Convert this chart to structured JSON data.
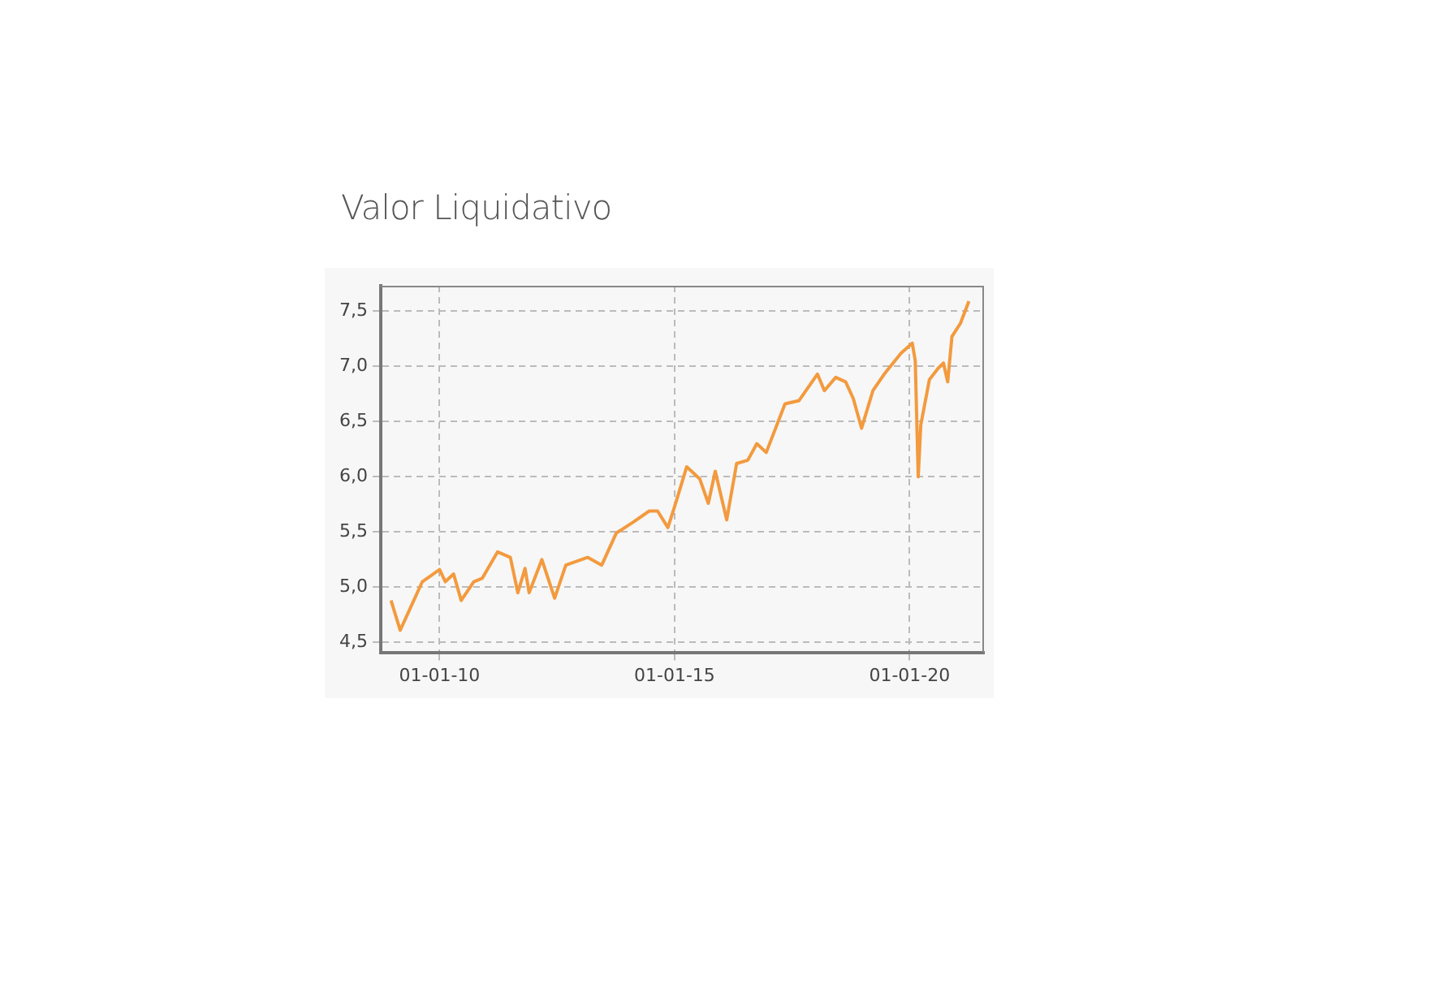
{
  "chart_data": {
    "type": "line",
    "title": "Valor Liquidativo",
    "x": [
      "2008-12-20",
      "2009-03-01",
      "2009-08-20",
      "2010-01-01",
      "2010-02-15",
      "2010-04-20",
      "2010-06-18",
      "2010-09-24",
      "2010-11-28",
      "2011-03-28",
      "2011-07-05",
      "2011-09-01",
      "2011-10-27",
      "2011-11-28",
      "2012-03-06",
      "2012-06-13",
      "2012-09-08",
      "2013-02-24",
      "2013-06-14",
      "2013-10-05",
      "2014-02-14",
      "2014-06-18",
      "2014-08-22",
      "2014-11-10",
      "2015-01-01",
      "2015-04-05",
      "2015-07-16",
      "2015-09-20",
      "2015-11-13",
      "2016-02-10",
      "2016-04-27",
      "2016-07-23",
      "2016-10-01",
      "2016-12-13",
      "2017-05-08",
      "2017-08-25",
      "2018-01-15",
      "2018-03-10",
      "2018-06-06",
      "2018-08-22",
      "2018-10-20",
      "2018-12-24",
      "2019-03-22",
      "2019-06-18",
      "2019-10-27",
      "2020-01-22",
      "2020-02-14",
      "2020-03-08",
      "2020-03-28",
      "2020-06-03",
      "2020-08-08",
      "2020-09-20",
      "2020-10-23",
      "2020-11-25",
      "2021-01-30",
      "2021-04-06"
    ],
    "series": [
      {
        "color": "#f39a3e",
        "values": [
          4.88,
          4.61,
          5.05,
          5.16,
          5.05,
          5.12,
          4.88,
          5.05,
          5.08,
          5.32,
          5.27,
          4.95,
          5.17,
          4.95,
          5.25,
          4.9,
          5.2,
          5.27,
          5.2,
          5.49,
          5.59,
          5.69,
          5.69,
          5.54,
          5.73,
          6.09,
          5.98,
          5.76,
          6.05,
          5.61,
          6.12,
          6.15,
          6.3,
          6.22,
          6.66,
          6.69,
          6.93,
          6.78,
          6.9,
          6.86,
          6.71,
          6.44,
          6.78,
          6.93,
          7.12,
          7.21,
          7.05,
          6.0,
          6.47,
          6.88,
          6.98,
          7.03,
          6.86,
          7.27,
          7.39,
          7.59
        ]
      }
    ],
    "xlim": [
      "2008-10-01",
      "2021-08-01"
    ],
    "xticks": [
      {
        "value": "2010-01-01",
        "label": "01-01-10"
      },
      {
        "value": "2015-01-01",
        "label": "01-01-15"
      },
      {
        "value": "2020-01-01",
        "label": "01-01-20"
      }
    ],
    "ylim": [
      4.41,
      7.73
    ],
    "yticks": [
      {
        "value": 4.5,
        "label": "4,5"
      },
      {
        "value": 5,
        "label": "5,0"
      },
      {
        "value": 5.5,
        "label": "5,5"
      },
      {
        "value": 6,
        "label": "6,0"
      },
      {
        "value": 6.5,
        "label": "6,5"
      },
      {
        "value": 7,
        "label": "7,0"
      },
      {
        "value": 7.5,
        "label": "7,5"
      }
    ],
    "grid": true,
    "legend": false,
    "marker": "none",
    "line_style": "solid"
  }
}
